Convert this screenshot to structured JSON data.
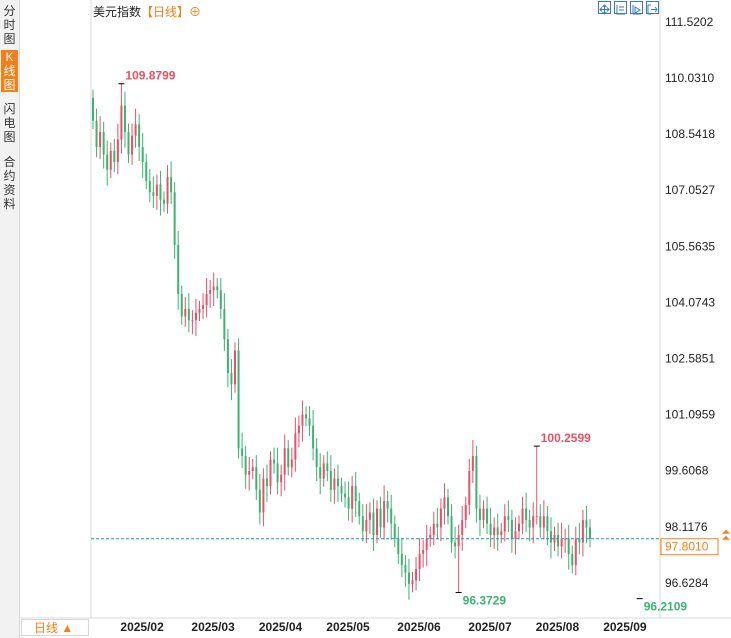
{
  "sidebar": {
    "tabs": [
      {
        "label": "分时图",
        "active": false
      },
      {
        "label": "K线图",
        "active": true
      },
      {
        "label": "闪电图",
        "active": false
      },
      {
        "label": "合约资料",
        "active": false
      }
    ]
  },
  "header": {
    "name": "美元指数",
    "period": "【日线】",
    "add_icon": "⊕",
    "toolbar_icons": [
      "expand-icon",
      "crosshair-icon",
      "indicator-icon",
      "exit-icon"
    ]
  },
  "footer": {
    "period_button": "日线 ▲"
  },
  "colors": {
    "up": "#e8506a",
    "down": "#3cb371",
    "accent": "#f57f17",
    "last_price_line": "#1b9aa0"
  },
  "chart_data": {
    "type": "candlestick",
    "y_ticks": [
      "111.5202",
      "110.0310",
      "108.5418",
      "107.0527",
      "105.5635",
      "104.0743",
      "102.5851",
      "101.0959",
      "99.6068",
      "98.1176",
      "96.6284"
    ],
    "ylim": [
      95.75,
      112.05
    ],
    "x_labels": [
      "2025/02",
      "2025/03",
      "2025/04",
      "2025/05",
      "2025/06",
      "2025/07",
      "2025/08",
      "2025/09"
    ],
    "x_label_index": [
      8,
      28,
      47,
      66,
      86,
      106,
      125,
      144
    ],
    "annotations": {
      "high_1": {
        "label": "109.8799",
        "index": 8,
        "value": 109.8799
      },
      "low_1": {
        "label": "96.3729",
        "index": 103,
        "value": 96.3729
      },
      "high_2": {
        "label": "100.2599",
        "index": 125,
        "value": 100.2599
      },
      "low_2": {
        "label": "96.2109",
        "index": 154,
        "value": 96.2109
      }
    },
    "last_price": {
      "label": "97.8010",
      "value": 97.801
    },
    "closes": [
      108.9,
      108.2,
      108.6,
      108.0,
      107.6,
      108.1,
      107.8,
      108.4,
      109.3,
      108.6,
      108.0,
      108.5,
      108.8,
      108.2,
      107.8,
      107.3,
      107.0,
      106.9,
      107.2,
      106.8,
      106.7,
      107.4,
      107.0,
      105.6,
      104.3,
      103.7,
      103.9,
      103.6,
      103.6,
      103.8,
      103.9,
      104.0,
      104.3,
      104.4,
      104.5,
      104.4,
      103.9,
      103.1,
      102.2,
      101.9,
      102.8,
      100.2,
      100.0,
      99.5,
      99.6,
      99.7,
      99.1,
      98.5,
      99.4,
      99.2,
      99.9,
      99.8,
      99.3,
      99.5,
      100.2,
      99.7,
      99.9,
      100.6,
      100.8,
      101.1,
      101.0,
      100.8,
      100.2,
      99.7,
      99.4,
      99.8,
      99.6,
      99.1,
      99.4,
      99.2,
      99.0,
      98.9,
      98.6,
      99.2,
      98.8,
      98.4,
      98.0,
      98.3,
      98.5,
      97.9,
      98.6,
      98.1,
      98.8,
      98.6,
      98.2,
      97.8,
      97.4,
      97.1,
      96.9,
      96.6,
      96.7,
      97.0,
      97.4,
      97.5,
      97.8,
      97.9,
      98.2,
      98.1,
      98.6,
      98.9,
      98.4,
      97.7,
      97.6,
      97.9,
      98.3,
      98.7,
      99.6,
      100.0,
      98.6,
      98.3,
      98.6,
      98.2,
      97.9,
      98.1,
      97.9,
      98.0,
      98.4,
      98.3,
      97.8,
      98.0,
      98.2,
      98.6,
      98.3,
      98.1,
      98.4,
      98.4,
      98.1,
      98.4,
      98.0,
      97.7,
      97.9,
      97.6,
      97.8,
      97.8,
      97.4,
      97.1,
      97.8,
      97.7,
      98.3,
      98.1,
      97.8
    ]
  }
}
